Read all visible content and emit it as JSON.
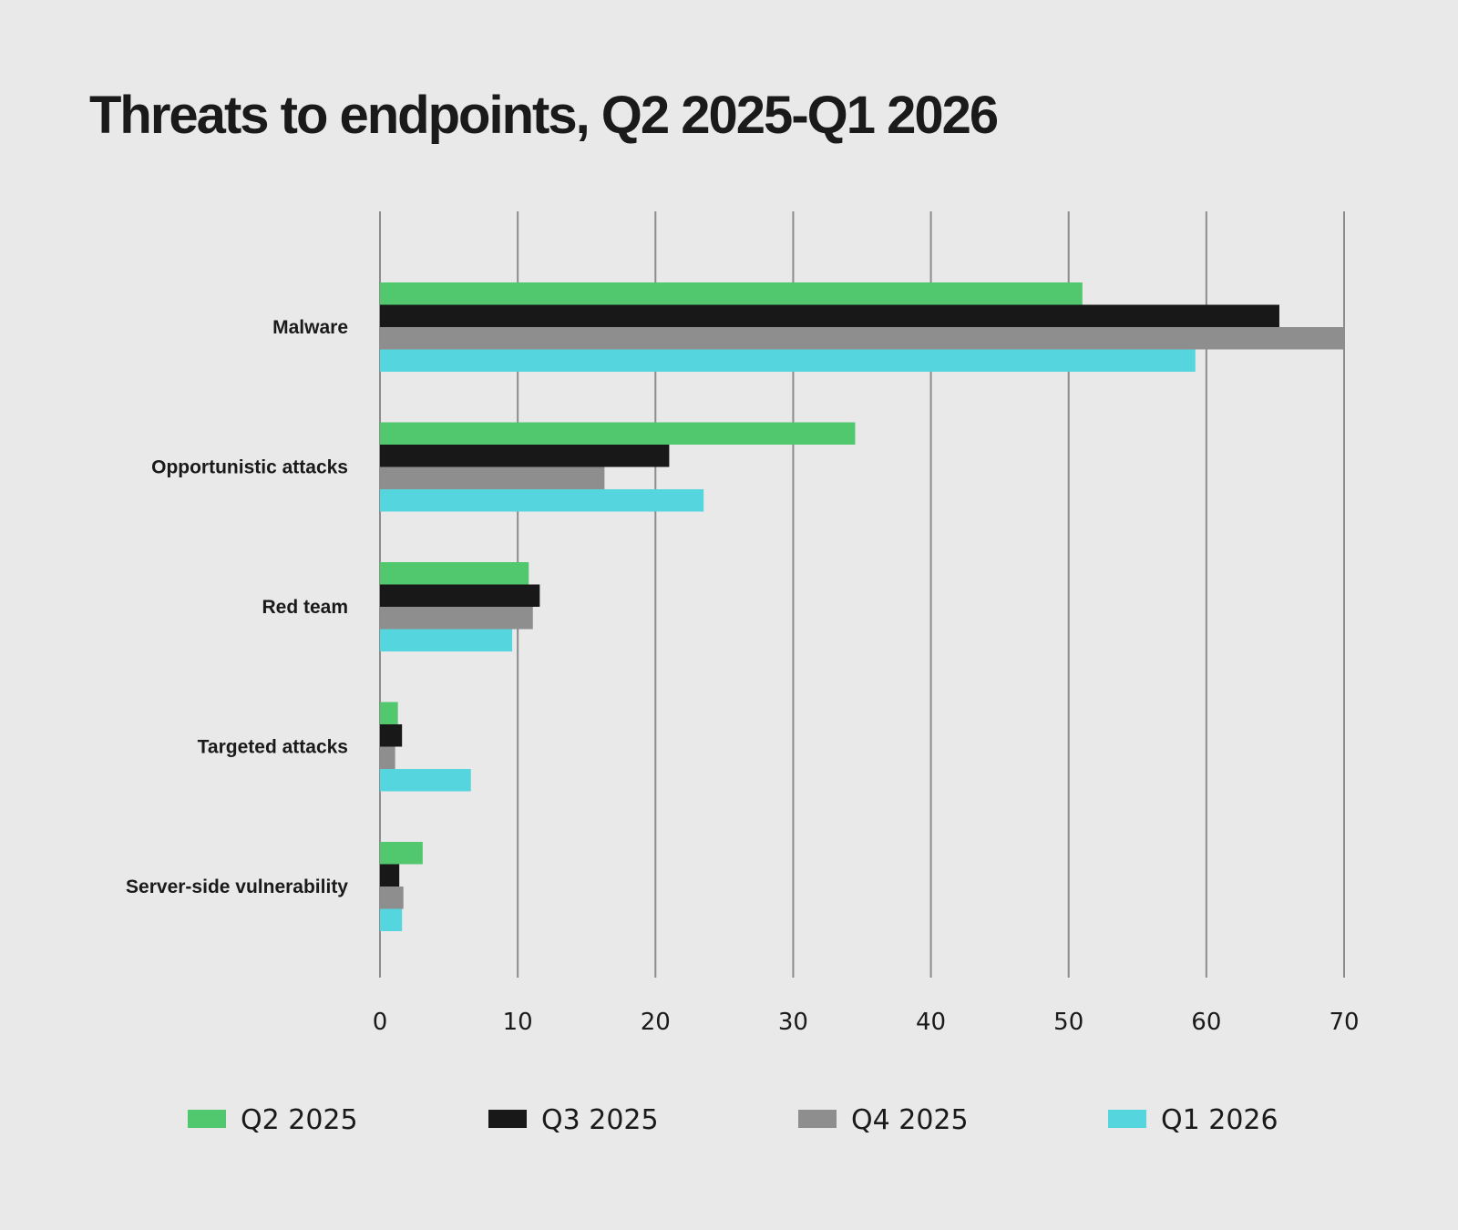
{
  "chart_data": {
    "type": "bar",
    "orientation": "horizontal",
    "title": "Threats to endpoints, Q2 2025-Q1 2026",
    "categories": [
      "Malware",
      "Opportunistic attacks",
      "Red team",
      "Targeted attacks",
      "Server-side vulnerability"
    ],
    "series": [
      {
        "name": "Q2 2025",
        "color": "#52c86e",
        "values": [
          51,
          34.5,
          10.8,
          1.3,
          3.1
        ]
      },
      {
        "name": "Q3 2025",
        "color": "#181818",
        "values": [
          65.3,
          21,
          11.6,
          1.6,
          1.4
        ]
      },
      {
        "name": "Q4 2025",
        "color": "#8e8e8e",
        "values": [
          70,
          16.3,
          11.1,
          1.1,
          1.7
        ]
      },
      {
        "name": "Q1 2026",
        "color": "#55d6de",
        "values": [
          59.2,
          23.5,
          9.6,
          6.6,
          1.6
        ]
      }
    ],
    "xlim": [
      0,
      70
    ],
    "xticks": [
      0,
      10,
      20,
      30,
      40,
      50,
      60,
      70
    ],
    "grid": true,
    "legend_position": "bottom"
  }
}
